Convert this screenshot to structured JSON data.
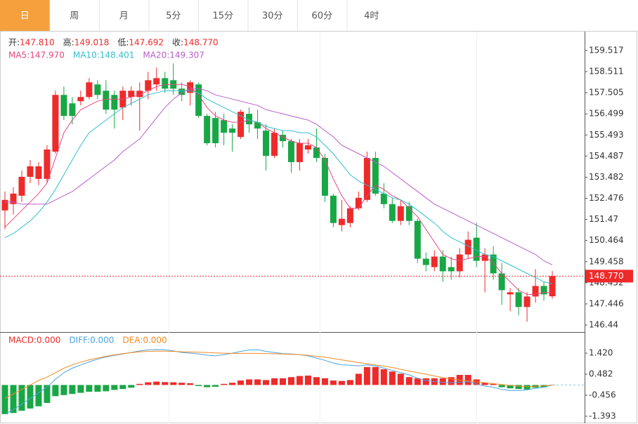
{
  "tabs": [
    "日",
    "周",
    "月",
    "5分",
    "15分",
    "30分",
    "60分",
    "4时"
  ],
  "selected_tab": 0,
  "chart_data": [
    {
      "type": "candlestick",
      "info": [
        {
          "label": "开:",
          "value": "147.810"
        },
        {
          "label": "高:",
          "value": "149.018"
        },
        {
          "label": "低:",
          "value": "147.692"
        },
        {
          "label": "收:",
          "value": "148.770"
        }
      ],
      "up_color": "#ee2a2a",
      "down_color": "#18a745",
      "open": [
        151.9,
        152.2,
        152.6,
        153.5,
        153.4,
        153.4,
        154.7,
        157.4,
        157.0,
        157.1,
        157.3,
        157.9,
        157.6,
        157.4,
        156.8,
        157.3,
        157.3,
        157.6,
        157.9,
        158.2,
        158.1,
        157.7,
        157.5,
        157.9,
        156.4,
        156.3,
        156.2,
        155.8,
        155.4,
        156.5,
        156.1,
        155.7,
        154.5,
        155.5,
        155.2,
        154.2,
        154.8,
        154.9,
        154.4,
        152.6,
        151.2,
        151.3,
        152.0,
        152.4,
        154.4,
        152.7,
        152.2,
        151.4,
        152.1,
        151.4,
        149.6,
        149.2,
        149.7,
        149.2,
        149.0,
        149.8,
        150.6,
        149.5,
        149.8,
        148.9,
        147.9,
        148.0,
        147.3,
        147.8,
        148.3,
        147.81
      ],
      "high": [
        152.8,
        153.0,
        153.8,
        154.3,
        154.2,
        155.0,
        157.6,
        157.8,
        157.3,
        157.6,
        158.2,
        158.1,
        158.1,
        157.6,
        157.8,
        157.8,
        158.0,
        158.5,
        158.7,
        158.5,
        158.9,
        158.0,
        158.1,
        158.0,
        156.5,
        156.6,
        156.5,
        156.0,
        156.7,
        156.8,
        156.7,
        156.0,
        155.8,
        155.7,
        155.3,
        155.3,
        155.3,
        155.8,
        154.6,
        152.7,
        152.4,
        152.1,
        152.8,
        154.7,
        154.7,
        153.2,
        152.5,
        152.4,
        152.3,
        151.5,
        149.9,
        150.0,
        150.0,
        149.7,
        150.1,
        150.9,
        151.3,
        150.1,
        150.2,
        149.4,
        148.2,
        148.2,
        148.0,
        149.1,
        148.5,
        149.018
      ],
      "low": [
        151.0,
        151.7,
        152.3,
        153.2,
        153.1,
        153.2,
        154.6,
        156.2,
        156.0,
        156.9,
        157.2,
        157.2,
        156.5,
        155.8,
        156.2,
        156.9,
        155.7,
        157.2,
        157.6,
        157.5,
        157.4,
        157.1,
        156.9,
        156.3,
        155.0,
        154.9,
        155.0,
        154.7,
        155.3,
        155.6,
        155.3,
        153.8,
        154.4,
        154.9,
        153.7,
        153.8,
        154.6,
        154.2,
        152.3,
        151.1,
        150.9,
        151.1,
        151.9,
        152.3,
        152.6,
        152.0,
        151.3,
        151.2,
        151.2,
        149.4,
        149.0,
        149.0,
        148.5,
        148.6,
        148.7,
        149.6,
        149.2,
        148.0,
        148.6,
        147.4,
        147.1,
        146.9,
        146.6,
        147.5,
        147.6,
        147.692
      ],
      "close": [
        152.4,
        152.7,
        153.5,
        154.0,
        154.0,
        154.8,
        157.4,
        156.4,
        156.4,
        157.3,
        158.0,
        157.4,
        156.7,
        156.7,
        157.6,
        157.6,
        157.6,
        158.1,
        158.2,
        157.7,
        157.7,
        157.4,
        158.0,
        156.4,
        155.1,
        155.1,
        155.6,
        155.6,
        156.6,
        156.0,
        155.8,
        154.5,
        155.6,
        155.2,
        154.2,
        155.1,
        155.0,
        154.4,
        152.6,
        151.3,
        151.5,
        152.0,
        152.5,
        154.4,
        152.7,
        152.2,
        151.4,
        152.1,
        151.4,
        149.6,
        149.3,
        149.7,
        149.0,
        149.0,
        149.8,
        150.5,
        149.5,
        149.8,
        148.9,
        148.1,
        148.0,
        147.3,
        147.8,
        148.3,
        147.9,
        148.77
      ],
      "series": [
        {
          "label": "MA5:",
          "current": "147.970",
          "color": "#e5477f",
          "values": [
            151.1,
            151.5,
            151.9,
            152.3,
            152.7,
            153.2,
            154.4,
            155.6,
            156.2,
            156.7,
            156.9,
            157.1,
            157.2,
            157.2,
            157.2,
            157.3,
            157.4,
            157.6,
            157.8,
            157.9,
            157.9,
            157.9,
            157.8,
            157.4,
            156.8,
            156.4,
            156.2,
            156.1,
            156.1,
            156.2,
            156.1,
            155.8,
            155.6,
            155.4,
            155.2,
            155.1,
            155.1,
            154.9,
            154.3,
            153.4,
            152.6,
            152.0,
            152.0,
            152.6,
            153.1,
            152.9,
            152.6,
            152.4,
            152.0,
            151.6,
            151.0,
            150.4,
            149.8,
            149.6,
            149.5,
            149.6,
            149.7,
            149.7,
            149.4,
            148.9,
            148.5,
            148.1,
            147.9,
            147.9,
            148.0,
            147.97
          ]
        },
        {
          "label": "MA10:",
          "current": "148.401",
          "color": "#2fbfd0",
          "values": [
            150.6,
            150.8,
            151.1,
            151.4,
            151.8,
            152.3,
            152.9,
            153.6,
            154.3,
            155.0,
            155.6,
            155.9,
            156.2,
            156.5,
            156.8,
            157.0,
            157.2,
            157.4,
            157.5,
            157.6,
            157.6,
            157.6,
            157.6,
            157.5,
            157.2,
            157.0,
            156.8,
            156.6,
            156.4,
            156.2,
            156.1,
            155.9,
            155.8,
            155.7,
            155.7,
            155.6,
            155.6,
            155.4,
            155.0,
            154.6,
            154.1,
            153.6,
            153.3,
            153.1,
            152.9,
            152.7,
            152.5,
            152.4,
            152.2,
            151.9,
            151.6,
            151.3,
            150.9,
            150.6,
            150.4,
            150.2,
            150.0,
            149.8,
            149.7,
            149.5,
            149.3,
            149.1,
            148.9,
            148.7,
            148.5,
            148.401
          ]
        },
        {
          "label": "MA20:",
          "current": "149.307",
          "color": "#b85fc9",
          "values": [
            152.3,
            152.3,
            152.2,
            152.2,
            152.2,
            152.2,
            152.4,
            152.6,
            152.8,
            153.1,
            153.4,
            153.7,
            154.0,
            154.3,
            154.7,
            155.0,
            155.3,
            155.8,
            156.3,
            156.8,
            157.2,
            157.5,
            157.7,
            157.7,
            157.6,
            157.4,
            157.3,
            157.2,
            157.1,
            157.0,
            156.9,
            156.7,
            156.6,
            156.5,
            156.4,
            156.3,
            156.2,
            156.0,
            155.7,
            155.4,
            155.0,
            154.8,
            154.6,
            154.4,
            154.2,
            154.0,
            153.7,
            153.4,
            153.1,
            152.8,
            152.5,
            152.2,
            152.0,
            151.8,
            151.6,
            151.4,
            151.2,
            151.0,
            150.8,
            150.6,
            150.4,
            150.2,
            150.0,
            149.8,
            149.5,
            149.307
          ]
        }
      ],
      "last_price": {
        "value": 148.77,
        "label": "148.770"
      },
      "ylim": [
        146.14,
        160.35
      ],
      "yticks": [
        159.517,
        158.511,
        157.505,
        156.499,
        155.493,
        154.487,
        153.482,
        152.476,
        151.47,
        150.464,
        149.458,
        148.452,
        147.446,
        146.44
      ]
    },
    {
      "type": "macd",
      "up_color": "#ee2a2a",
      "down_color": "#18a745",
      "series": [
        {
          "label": "MACD:",
          "current": "0.000",
          "color": "#ee2a2a",
          "values": [
            -1.3,
            -1.25,
            -1.15,
            -1.05,
            -0.95,
            -0.8,
            -0.5,
            -0.45,
            -0.4,
            -0.35,
            -0.3,
            -0.3,
            -0.28,
            -0.22,
            -0.18,
            -0.12,
            0.05,
            0.12,
            0.15,
            0.13,
            0.12,
            0.1,
            0.08,
            -0.05,
            -0.1,
            -0.08,
            0.05,
            0.1,
            0.2,
            0.25,
            0.25,
            0.22,
            0.3,
            0.3,
            0.35,
            0.4,
            0.42,
            0.35,
            0.3,
            0.2,
            0.18,
            0.22,
            0.5,
            0.8,
            0.8,
            0.7,
            0.6,
            0.5,
            0.35,
            0.3,
            0.3,
            0.3,
            0.3,
            0.35,
            0.45,
            0.45,
            0.25,
            0.1,
            0.05,
            -0.1,
            -0.15,
            -0.18,
            -0.2,
            -0.12,
            -0.1,
            0
          ]
        },
        {
          "label": "DIFF:",
          "current": "0.000",
          "color": "#4aa3e2",
          "values": [
            -1.3,
            -1.1,
            -0.85,
            -0.6,
            -0.35,
            -0.1,
            0.25,
            0.55,
            0.75,
            0.9,
            1.03,
            1.15,
            1.25,
            1.32,
            1.38,
            1.45,
            1.52,
            1.57,
            1.58,
            1.57,
            1.52,
            1.45,
            1.42,
            1.38,
            1.33,
            1.3,
            1.35,
            1.42,
            1.5,
            1.56,
            1.57,
            1.5,
            1.45,
            1.4,
            1.38,
            1.35,
            1.3,
            1.2,
            1.1,
            0.98,
            0.9,
            0.88,
            0.85,
            0.9,
            0.85,
            0.75,
            0.65,
            0.55,
            0.45,
            0.3,
            0.2,
            0.15,
            0.12,
            0.1,
            0.12,
            0.15,
            0.05,
            -0.05,
            -0.1,
            -0.2,
            -0.25,
            -0.25,
            -0.22,
            -0.15,
            -0.1,
            0
          ]
        },
        {
          "label": "DEA:",
          "current": "0.000",
          "color": "#f08a24",
          "values": [
            -0.6,
            -0.4,
            -0.2,
            0,
            0.2,
            0.35,
            0.55,
            0.75,
            0.9,
            1.02,
            1.12,
            1.2,
            1.28,
            1.34,
            1.4,
            1.44,
            1.48,
            1.5,
            1.51,
            1.51,
            1.5,
            1.48,
            1.47,
            1.46,
            1.45,
            1.43,
            1.42,
            1.41,
            1.41,
            1.41,
            1.41,
            1.4,
            1.39,
            1.38,
            1.37,
            1.35,
            1.32,
            1.28,
            1.24,
            1.18,
            1.12,
            1.06,
            1.0,
            0.95,
            0.9,
            0.84,
            0.78,
            0.7,
            0.62,
            0.55,
            0.48,
            0.4,
            0.33,
            0.27,
            0.22,
            0.18,
            0.14,
            0.1,
            0.06,
            0.02,
            -0.02,
            -0.05,
            -0.07,
            -0.06,
            -0.04,
            0
          ]
        }
      ],
      "ylim": [
        -1.74,
        2.33
      ],
      "yticks": [
        {
          "value": 1.42,
          "label": "1.420"
        },
        0.482,
        -0.456,
        -1.393
      ]
    }
  ]
}
